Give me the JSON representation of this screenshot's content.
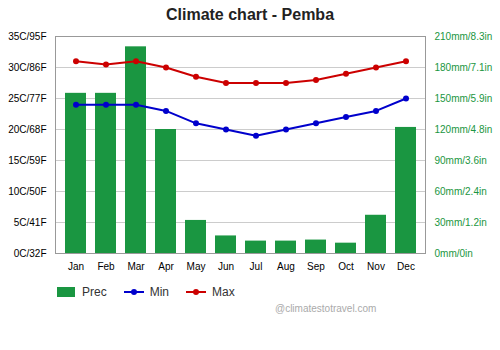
{
  "chart_data": {
    "type": "bar",
    "title": "Climate chart - Pemba",
    "categories": [
      "Jan",
      "Feb",
      "Mar",
      "Apr",
      "May",
      "Jun",
      "Jul",
      "Aug",
      "Sep",
      "Oct",
      "Nov",
      "Dec"
    ],
    "series": [
      {
        "name": "Prec",
        "type": "bar",
        "axis": "y2",
        "color": "#1a9641",
        "values": [
          155,
          155,
          200,
          120,
          32,
          17,
          12,
          12,
          13,
          10,
          37,
          122
        ]
      },
      {
        "name": "Min",
        "type": "line",
        "marker": "circle",
        "color": "#0000cc",
        "values": [
          24,
          24,
          24,
          23,
          21,
          20,
          19,
          20,
          21,
          22,
          23,
          25
        ]
      },
      {
        "name": "Max",
        "type": "line",
        "marker": "circle",
        "color": "#cc0000",
        "values": [
          31,
          30.5,
          31,
          30,
          28.5,
          27.5,
          27.5,
          27.5,
          28,
          29,
          30,
          31
        ]
      }
    ],
    "ylim": [
      0,
      35
    ],
    "yticks": [
      {
        "value": 0,
        "label": "0C/32F"
      },
      {
        "value": 5,
        "label": "5C/41F"
      },
      {
        "value": 10,
        "label": "10C/50F"
      },
      {
        "value": 15,
        "label": "15C/59F"
      },
      {
        "value": 20,
        "label": "20C/68F"
      },
      {
        "value": 25,
        "label": "25C/77F"
      },
      {
        "value": 30,
        "label": "30C/86F"
      },
      {
        "value": 35,
        "label": "35C/95F"
      }
    ],
    "y2lim": [
      0,
      210
    ],
    "y2ticks": [
      {
        "value": 0,
        "label": "0mm/0in"
      },
      {
        "value": 30,
        "label": "30mm/1.2in"
      },
      {
        "value": 60,
        "label": "60mm/2.4in"
      },
      {
        "value": 90,
        "label": "90mm/3.6in"
      },
      {
        "value": 120,
        "label": "120mm/4.8in"
      },
      {
        "value": 150,
        "label": "150mm/5.9in"
      },
      {
        "value": 180,
        "label": "180mm/7.1in"
      },
      {
        "value": 210,
        "label": "210mm/8.3in"
      }
    ],
    "grid": true,
    "legend": "lower left",
    "annotations": [
      "@climatestotravel.com"
    ]
  }
}
